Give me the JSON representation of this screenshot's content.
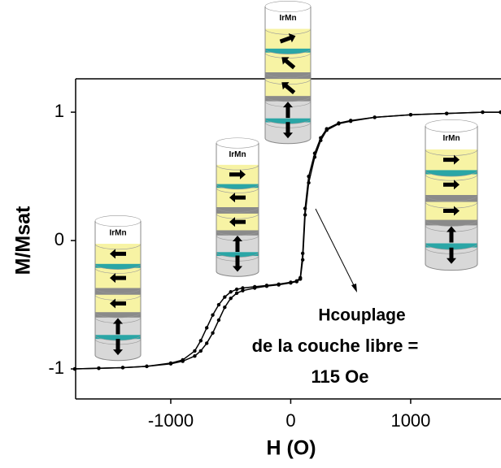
{
  "chart_data": {
    "type": "line",
    "x_label": "H (O)",
    "y_label": "M/Msat",
    "x": [
      -1800,
      -1600,
      -1400,
      -1200,
      -1000,
      -900,
      -800,
      -750,
      -700,
      -650,
      -600,
      -550,
      -500,
      -450,
      -400,
      -300,
      -200,
      -100,
      0,
      50,
      80,
      100,
      120,
      150,
      200,
      250,
      300,
      400,
      500,
      700,
      1000,
      1300,
      1600,
      1750
    ],
    "series": [
      {
        "color": "#000000",
        "values": [
          -1,
          -0.995,
          -0.99,
          -0.98,
          -0.96,
          -0.94,
          -0.9,
          -0.86,
          -0.8,
          -0.72,
          -0.62,
          -0.52,
          -0.45,
          -0.41,
          -0.39,
          -0.37,
          -0.355,
          -0.345,
          -0.33,
          -0.32,
          -0.3,
          -0.15,
          0.2,
          0.45,
          0.65,
          0.78,
          0.86,
          0.91,
          0.93,
          0.96,
          0.98,
          0.99,
          1.0,
          1.0
        ]
      },
      {
        "color": "#000000",
        "values": [
          -1,
          -0.995,
          -0.99,
          -0.98,
          -0.955,
          -0.93,
          -0.86,
          -0.78,
          -0.68,
          -0.58,
          -0.5,
          -0.44,
          -0.4,
          -0.38,
          -0.37,
          -0.36,
          -0.35,
          -0.34,
          -0.325,
          -0.315,
          -0.29,
          -0.1,
          0.25,
          0.5,
          0.68,
          0.8,
          0.87,
          0.915,
          0.935,
          0.96,
          0.98,
          0.99,
          1.0,
          1.0
        ]
      }
    ],
    "xlim": [
      -1793,
      1753
    ],
    "ylim": [
      -1.234,
      1.26
    ],
    "xticks": [
      -1000,
      0,
      1000
    ],
    "yticks": [
      -1,
      0,
      1
    ],
    "annotations": [
      "Hcouplage",
      "de la couche libre =",
      "115 Oe"
    ],
    "stack_labels": [
      "IrMn",
      "IrMn",
      "IrMn",
      "IrMn"
    ]
  }
}
